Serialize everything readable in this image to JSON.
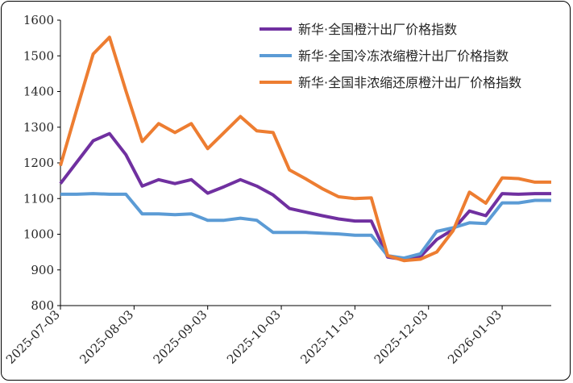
{
  "chart_data": {
    "type": "line",
    "title": "",
    "xlabel": "",
    "ylabel": "",
    "ylim": [
      800,
      1600
    ],
    "yticks": [
      800,
      900,
      1000,
      1100,
      1200,
      1300,
      1400,
      1500,
      1600
    ],
    "ytick_labels": [
      "800",
      "900",
      "1000",
      "1100",
      "1200",
      "1300",
      "1400",
      "1500",
      "1600"
    ],
    "xtick_labels": [
      "2025-07-03",
      "2025-08-03",
      "2025-09-03",
      "2025-10-03",
      "2025-11-03",
      "2025-12-03",
      "2026-01-03"
    ],
    "xtick_positions": [
      0,
      4.5,
      9,
      13.5,
      18,
      22.5,
      27
    ],
    "x_count": 31,
    "legend_position": "top-right",
    "series": [
      {
        "name": "新华·全国橙汁出厂价格指数",
        "color": "#7030a0",
        "values": [
          1142,
          1202,
          1262,
          1282,
          1223,
          1135,
          1153,
          1142,
          1153,
          1115,
          1133,
          1153,
          1135,
          1110,
          1072,
          1062,
          1052,
          1043,
          1037,
          1037,
          936,
          929,
          937,
          985,
          1013,
          1065,
          1052,
          1114,
          1112,
          1114,
          1114
        ]
      },
      {
        "name": "新华·全国冷冻浓缩橙汁出厂价格指数",
        "color": "#5b9bd5",
        "values": [
          1112,
          1112,
          1114,
          1112,
          1112,
          1057,
          1057,
          1055,
          1057,
          1039,
          1039,
          1045,
          1039,
          1005,
          1005,
          1005,
          1003,
          1001,
          997,
          997,
          940,
          933,
          945,
          1008,
          1018,
          1032,
          1030,
          1088,
          1088,
          1095,
          1095
        ]
      },
      {
        "name": "新华·全国非浓缩还原橙汁出厂价格指数",
        "color": "#ed7d31",
        "values": [
          1192,
          1350,
          1505,
          1552,
          1402,
          1260,
          1310,
          1285,
          1310,
          1240,
          1285,
          1330,
          1290,
          1285,
          1180,
          1155,
          1128,
          1105,
          1100,
          1102,
          940,
          926,
          930,
          950,
          1010,
          1118,
          1087,
          1158,
          1156,
          1146,
          1146
        ]
      }
    ]
  }
}
